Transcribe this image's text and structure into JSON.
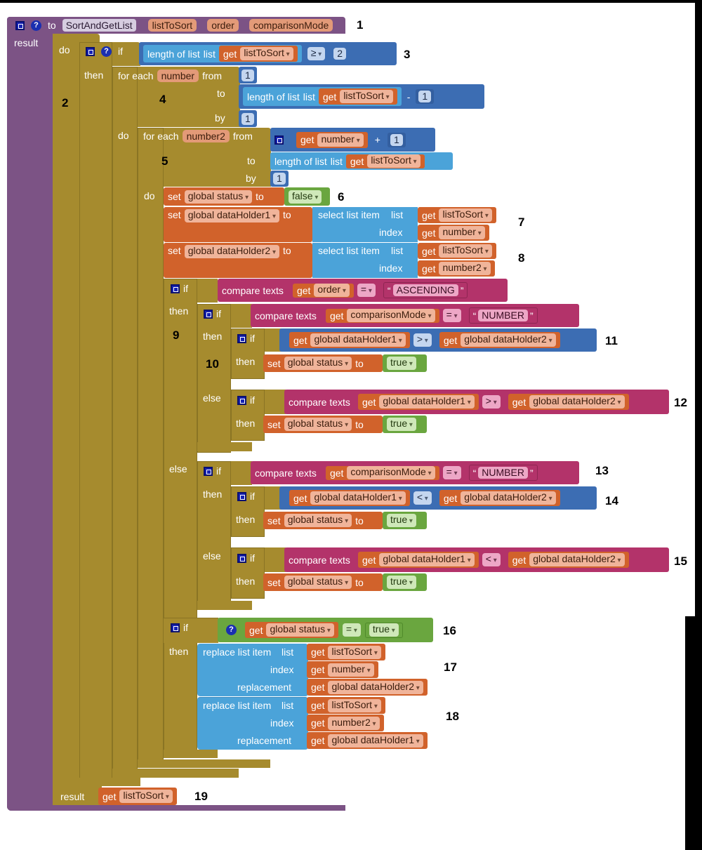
{
  "procedure": {
    "keyword": "to",
    "name": "SortAndGetList",
    "params": [
      "listToSort",
      "order",
      "comparisonMode"
    ]
  },
  "labels": {
    "result": "result",
    "do": "do",
    "if": "if",
    "then": "then",
    "else": "else",
    "for_each": "for each",
    "from": "from",
    "to": "to",
    "by": "by",
    "set": "set",
    "get": "get",
    "length_of_list": "length of list",
    "list": "list",
    "select_list_item": "select list item",
    "index": "index",
    "compare_texts": "compare texts",
    "replace_list_item": "replace list item",
    "replacement": "replacement"
  },
  "vars": {
    "number": "number",
    "number2": "number2",
    "status": "global status",
    "dh1": "global dataHolder1",
    "dh2": "global dataHolder2"
  },
  "ops": {
    "gte": "≥",
    "minus": "-",
    "plus": "+",
    "eq": "=",
    "gt": ">",
    "lt": "<"
  },
  "values": {
    "two": "2",
    "one": "1",
    "false": "false",
    "true": "true",
    "ascending": "ASCENDING",
    "number_text": "NUMBER",
    "quote_open": "“",
    "quote_close": "”"
  },
  "annotations": [
    "1",
    "2",
    "3",
    "4",
    "5",
    "6",
    "7",
    "8",
    "9",
    "10",
    "11",
    "12",
    "13",
    "14",
    "15",
    "16",
    "17",
    "18",
    "19"
  ],
  "colors": {
    "procedure": "#7c5385",
    "control": "#a68b2e",
    "variables": "#d1622b",
    "lists": "#4ba3d9",
    "math": "#3c6db3",
    "text": "#b3336a",
    "logic": "#6aa63f"
  }
}
